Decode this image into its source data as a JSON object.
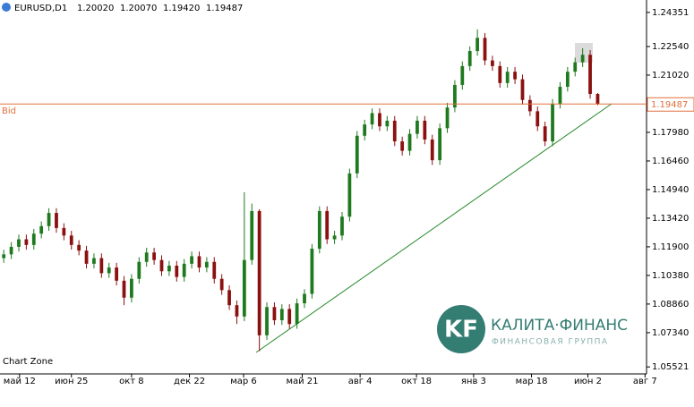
{
  "header": {
    "symbol": "EURUSD,D1",
    "open": "1.20020",
    "high": "1.20070",
    "low": "1.19420",
    "close": "1.19487"
  },
  "chart_label": "Chart Zone",
  "watermark": {
    "brand": "КАЛИТА·ФИНАНС",
    "tagline": "ФИНАНСОВАЯ ГРУППА",
    "logo": "KF"
  },
  "chart_data": {
    "type": "candlestick",
    "up_color": "#1f7a1f",
    "down_color": "#8b1010",
    "bid": 1.19487,
    "bid_label": "Bid",
    "bid_color": "#e0703c",
    "open": [
      1.113,
      1.115,
      1.119,
      1.123,
      1.12,
      1.126,
      1.13,
      1.137,
      1.129,
      1.125,
      1.12,
      1.117,
      1.11,
      1.113,
      1.105,
      1.108,
      1.101,
      1.092,
      1.102,
      1.111,
      1.116,
      1.112,
      1.106,
      1.109,
      1.103,
      1.11,
      1.114,
      1.108,
      1.111,
      1.102,
      1.096,
      1.088,
      1.082,
      1.112,
      1.138,
      1.072,
      1.087,
      1.08,
      1.086,
      1.078,
      1.089,
      1.094,
      1.118,
      1.138,
      1.123,
      1.125,
      1.135,
      1.158,
      1.178,
      1.184,
      1.19,
      1.183,
      1.186,
      1.175,
      1.17,
      1.179,
      1.186,
      1.176,
      1.165,
      1.182,
      1.193,
      1.205,
      1.215,
      1.223,
      1.23,
      1.218,
      1.215,
      1.206,
      1.212,
      1.208,
      1.197,
      1.191,
      1.183,
      1.175,
      1.195,
      1.204,
      1.212,
      1.217,
      1.221,
      1.2002
    ],
    "high": [
      1.1175,
      1.1215,
      1.1255,
      1.1255,
      1.1285,
      1.1325,
      1.1395,
      1.1395,
      1.1315,
      1.1275,
      1.1225,
      1.1195,
      1.1155,
      1.1155,
      1.1105,
      1.1105,
      1.1035,
      1.1045,
      1.1135,
      1.1185,
      1.1185,
      1.1145,
      1.1115,
      1.1115,
      1.1125,
      1.1165,
      1.1165,
      1.1135,
      1.1135,
      1.1045,
      1.0985,
      1.0905,
      1.148,
      1.142,
      1.139,
      1.0895,
      1.0895,
      1.0885,
      1.0885,
      1.0915,
      1.0965,
      1.1205,
      1.1405,
      1.1405,
      1.1275,
      1.1375,
      1.1605,
      1.1805,
      1.1865,
      1.1925,
      1.1925,
      1.1885,
      1.1885,
      1.1775,
      1.1815,
      1.1885,
      1.1885,
      1.1785,
      1.1845,
      1.1955,
      1.2075,
      1.2175,
      1.2255,
      1.2345,
      1.2325,
      1.2205,
      1.2175,
      1.2145,
      1.2145,
      1.2105,
      1.1995,
      1.1935,
      1.1855,
      1.1975,
      1.2065,
      1.2145,
      1.2195,
      1.2245,
      1.2235,
      1.2007
    ],
    "low": [
      1.1105,
      1.1125,
      1.1165,
      1.1175,
      1.1175,
      1.1235,
      1.1275,
      1.1265,
      1.1225,
      1.1175,
      1.1145,
      1.1075,
      1.1075,
      1.1025,
      1.1025,
      1.0985,
      1.088,
      1.0895,
      1.0995,
      1.1085,
      1.1095,
      1.1035,
      1.1035,
      1.1005,
      1.1005,
      1.1075,
      1.1055,
      1.1055,
      1.0995,
      1.0935,
      1.0855,
      1.078,
      1.0795,
      1.1095,
      1.0636,
      1.0695,
      1.0775,
      1.0775,
      1.0755,
      1.0755,
      1.0865,
      1.0915,
      1.1155,
      1.1205,
      1.1205,
      1.1225,
      1.1325,
      1.1555,
      1.1755,
      1.1815,
      1.1805,
      1.1805,
      1.1725,
      1.1675,
      1.1675,
      1.1765,
      1.1735,
      1.1625,
      1.1625,
      1.1795,
      1.1905,
      1.2025,
      1.2125,
      1.2205,
      1.2155,
      1.2125,
      1.2035,
      1.2035,
      1.2055,
      1.1945,
      1.1885,
      1.1805,
      1.1725,
      1.1725,
      1.1925,
      1.2015,
      1.2095,
      1.2145,
      1.1977,
      1.1942
    ],
    "close": [
      1.115,
      1.119,
      1.123,
      1.12,
      1.126,
      1.13,
      1.137,
      1.129,
      1.125,
      1.12,
      1.117,
      1.11,
      1.113,
      1.105,
      1.108,
      1.101,
      1.092,
      1.102,
      1.111,
      1.116,
      1.112,
      1.106,
      1.109,
      1.103,
      1.11,
      1.114,
      1.108,
      1.111,
      1.102,
      1.096,
      1.088,
      1.082,
      1.112,
      1.138,
      1.072,
      1.087,
      1.08,
      1.086,
      1.078,
      1.089,
      1.094,
      1.118,
      1.138,
      1.123,
      1.125,
      1.135,
      1.158,
      1.178,
      1.184,
      1.19,
      1.183,
      1.186,
      1.175,
      1.17,
      1.179,
      1.186,
      1.176,
      1.165,
      1.182,
      1.193,
      1.205,
      1.215,
      1.223,
      1.23,
      1.218,
      1.215,
      1.206,
      1.212,
      1.208,
      1.197,
      1.191,
      1.183,
      1.175,
      1.195,
      1.204,
      1.212,
      1.217,
      1.221,
      1.2002,
      1.19487
    ],
    "xlim": [
      0,
      86
    ],
    "xticks": [
      {
        "value": 2.6,
        "label": "май 12"
      },
      {
        "value": 9.5,
        "label": "июн 25"
      },
      {
        "value": 17.5,
        "label": "окт 8"
      },
      {
        "value": 25.2,
        "label": "дек 22"
      },
      {
        "value": 32.4,
        "label": "мар 6"
      },
      {
        "value": 40.2,
        "label": "май 21"
      },
      {
        "value": 47.9,
        "label": "авг 4"
      },
      {
        "value": 55.4,
        "label": "окт 18"
      },
      {
        "value": 63,
        "label": "янв 3"
      },
      {
        "value": 70.7,
        "label": "мар 18"
      },
      {
        "value": 78.2,
        "label": "июн 2"
      },
      {
        "value": 85.8,
        "label": "авг 7"
      }
    ],
    "ylim": [
      1.0515,
      1.2501
    ],
    "yticks": [
      {
        "value": 1.24351,
        "label": "1.24351"
      },
      {
        "value": 1.2254,
        "label": "1.22540"
      },
      {
        "value": 1.2102,
        "label": "1.21020"
      },
      {
        "value": 1.1798,
        "label": "1.17980"
      },
      {
        "value": 1.1646,
        "label": "1.16460"
      },
      {
        "value": 1.1494,
        "label": "1.14940"
      },
      {
        "value": 1.1342,
        "label": "1.13420"
      },
      {
        "value": 1.119,
        "label": "1.11900"
      },
      {
        "value": 1.1038,
        "label": "1.10380"
      },
      {
        "value": 1.0886,
        "label": "1.08860"
      },
      {
        "value": 1.0734,
        "label": "1.07340"
      },
      {
        "value": 1.05521,
        "label": "1.05521"
      }
    ]
  }
}
